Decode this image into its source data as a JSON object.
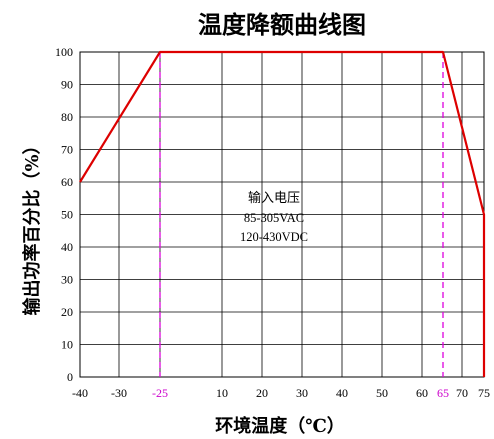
{
  "chart_data": {
    "type": "line",
    "title": "温度降额曲线图",
    "xlabel": "环境温度（℃）",
    "ylabel": "输出功率百分比（%）",
    "xlim": [
      -40,
      75
    ],
    "ylim": [
      0,
      100
    ],
    "x_tick_labels": [
      "-40",
      "-30",
      "-25",
      "10",
      "20",
      "30",
      "40",
      "50",
      "60",
      "65",
      "70",
      "75"
    ],
    "x_highlight_ticks": [
      "-25",
      "65"
    ],
    "y_ticks": [
      0,
      10,
      20,
      30,
      40,
      50,
      60,
      70,
      80,
      90,
      100
    ],
    "grid": true,
    "series": [
      {
        "color": "#dd0000",
        "points": [
          {
            "x": "-40",
            "y": 60
          },
          {
            "x": "-25",
            "y": 100
          },
          {
            "x": "65",
            "y": 100
          },
          {
            "x": "75",
            "y": 50
          },
          {
            "x": "75",
            "y": 0
          }
        ]
      }
    ],
    "reference_lines": [
      {
        "x": "-25",
        "color": "#dd00dd",
        "style": "dashed"
      },
      {
        "x": "65",
        "color": "#dd00dd",
        "style": "dashed"
      }
    ],
    "annotation": {
      "line1": "输入电压",
      "line2": "85-305VAC",
      "line3": "120-430VDC"
    }
  }
}
